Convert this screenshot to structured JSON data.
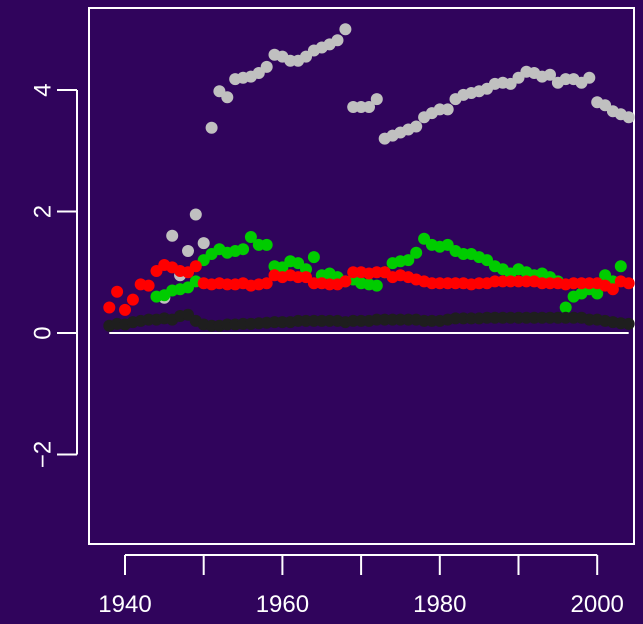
{
  "chart_data": {
    "type": "scatter",
    "title": "",
    "xlabel": "",
    "ylabel": "",
    "xlim": [
      1935,
      2005
    ],
    "ylim": [
      -3.5,
      5.3
    ],
    "x_ticks": [
      1940,
      1950,
      1960,
      1970,
      1980,
      1990,
      2000
    ],
    "x_tick_labels": [
      "1940",
      "1960",
      "1980",
      "2000"
    ],
    "y_ticks": [
      -2,
      0,
      2,
      4
    ],
    "y_tick_labels": [
      "−2",
      "0",
      "2",
      "4"
    ],
    "grid": false,
    "legend": "none",
    "background_color": "#30045c",
    "axis_color": "#ffffff",
    "reference_line": {
      "y": 0,
      "x_range": [
        1938,
        2004
      ],
      "color": "#ffffff"
    },
    "series": [
      {
        "color": "#c0c0c0",
        "x": [
          1945,
          1946,
          1947,
          1948,
          1949,
          1950,
          1951,
          1952,
          1953,
          1954,
          1955,
          1956,
          1957,
          1958,
          1959,
          1960,
          1961,
          1962,
          1963,
          1964,
          1965,
          1966,
          1967,
          1968,
          1969,
          1970,
          1971,
          1972,
          1973,
          1974,
          1975,
          1976,
          1977,
          1978,
          1979,
          1980,
          1981,
          1982,
          1983,
          1984,
          1985,
          1986,
          1987,
          1988,
          1989,
          1990,
          1991,
          1992,
          1993,
          1994,
          1995,
          1996,
          1997,
          1998,
          1999,
          2000,
          2001,
          2002,
          2003,
          2004
        ],
        "y": [
          0.58,
          1.6,
          0.95,
          1.35,
          1.95,
          1.48,
          3.38,
          3.98,
          3.88,
          4.18,
          4.2,
          4.22,
          4.28,
          4.38,
          4.58,
          4.55,
          4.48,
          4.48,
          4.55,
          4.65,
          4.7,
          4.75,
          4.82,
          5.0,
          3.72,
          3.72,
          3.72,
          3.85,
          3.2,
          3.25,
          3.3,
          3.35,
          3.4,
          3.55,
          3.62,
          3.68,
          3.68,
          3.85,
          3.92,
          3.95,
          3.98,
          4.02,
          4.1,
          4.12,
          4.1,
          4.2,
          4.3,
          4.28,
          4.22,
          4.25,
          4.12,
          4.18,
          4.18,
          4.12,
          4.2,
          3.8,
          3.75,
          3.65,
          3.6,
          3.55
        ]
      },
      {
        "color": "#00cc00",
        "x": [
          1944,
          1945,
          1946,
          1947,
          1948,
          1949,
          1950,
          1951,
          1952,
          1953,
          1954,
          1955,
          1956,
          1957,
          1958,
          1959,
          1960,
          1961,
          1962,
          1963,
          1964,
          1965,
          1966,
          1967,
          1968,
          1969,
          1970,
          1971,
          1972,
          1973,
          1974,
          1975,
          1976,
          1977,
          1978,
          1979,
          1980,
          1981,
          1982,
          1983,
          1984,
          1985,
          1986,
          1987,
          1988,
          1989,
          1990,
          1991,
          1992,
          1993,
          1994,
          1995,
          1996,
          1997,
          1998,
          1999,
          2000,
          2001,
          2002,
          2003
        ],
        "y": [
          0.6,
          0.62,
          0.7,
          0.72,
          0.75,
          0.85,
          1.2,
          1.3,
          1.38,
          1.32,
          1.35,
          1.38,
          1.58,
          1.45,
          1.45,
          1.1,
          1.08,
          1.18,
          1.15,
          1.05,
          1.25,
          0.95,
          0.98,
          0.92,
          0.85,
          0.88,
          0.82,
          0.8,
          0.78,
          1.0,
          1.15,
          1.18,
          1.2,
          1.32,
          1.55,
          1.45,
          1.42,
          1.45,
          1.35,
          1.3,
          1.3,
          1.25,
          1.2,
          1.1,
          1.05,
          0.98,
          1.05,
          1.0,
          0.95,
          0.98,
          0.92,
          0.85,
          0.42,
          0.6,
          0.65,
          0.72,
          0.65,
          0.95,
          0.85,
          1.1
        ]
      },
      {
        "color": "#ff0000",
        "x": [
          1938,
          1939,
          1940,
          1941,
          1942,
          1943,
          1944,
          1945,
          1946,
          1947,
          1948,
          1949,
          1950,
          1951,
          1952,
          1953,
          1954,
          1955,
          1956,
          1957,
          1958,
          1959,
          1960,
          1961,
          1962,
          1963,
          1964,
          1965,
          1966,
          1967,
          1968,
          1969,
          1970,
          1971,
          1972,
          1973,
          1974,
          1975,
          1976,
          1977,
          1978,
          1979,
          1980,
          1981,
          1982,
          1983,
          1984,
          1985,
          1986,
          1987,
          1988,
          1989,
          1990,
          1991,
          1992,
          1993,
          1994,
          1995,
          1996,
          1997,
          1998,
          1999,
          2000,
          2001,
          2002,
          2003,
          2004
        ],
        "y": [
          0.42,
          0.68,
          0.38,
          0.55,
          0.8,
          0.78,
          1.02,
          1.12,
          1.08,
          1.02,
          1.0,
          1.1,
          0.82,
          0.8,
          0.82,
          0.8,
          0.8,
          0.82,
          0.78,
          0.8,
          0.82,
          0.95,
          0.92,
          0.95,
          0.92,
          0.92,
          0.82,
          0.82,
          0.8,
          0.8,
          0.85,
          1.0,
          1.0,
          0.98,
          1.0,
          1.0,
          0.92,
          0.95,
          0.92,
          0.88,
          0.85,
          0.82,
          0.82,
          0.82,
          0.82,
          0.82,
          0.8,
          0.82,
          0.82,
          0.85,
          0.85,
          0.85,
          0.85,
          0.85,
          0.85,
          0.82,
          0.82,
          0.82,
          0.8,
          0.82,
          0.82,
          0.82,
          0.82,
          0.78,
          0.72,
          0.85,
          0.82
        ]
      },
      {
        "color": "#1e1e1e",
        "x": [
          1938,
          1939,
          1940,
          1941,
          1942,
          1943,
          1944,
          1945,
          1946,
          1947,
          1948,
          1949,
          1950,
          1951,
          1952,
          1953,
          1954,
          1955,
          1956,
          1957,
          1958,
          1959,
          1960,
          1961,
          1962,
          1963,
          1964,
          1965,
          1966,
          1967,
          1968,
          1969,
          1970,
          1971,
          1972,
          1973,
          1974,
          1975,
          1976,
          1977,
          1978,
          1979,
          1980,
          1981,
          1982,
          1983,
          1984,
          1985,
          1986,
          1987,
          1988,
          1989,
          1990,
          1991,
          1992,
          1993,
          1994,
          1995,
          1996,
          1997,
          1998,
          1999,
          2000,
          2001,
          2002,
          2003,
          2004
        ],
        "y": [
          0.12,
          0.15,
          0.14,
          0.18,
          0.2,
          0.22,
          0.22,
          0.24,
          0.22,
          0.28,
          0.3,
          0.2,
          0.14,
          0.12,
          0.12,
          0.14,
          0.14,
          0.15,
          0.15,
          0.16,
          0.17,
          0.18,
          0.18,
          0.18,
          0.2,
          0.2,
          0.2,
          0.2,
          0.2,
          0.2,
          0.18,
          0.2,
          0.2,
          0.2,
          0.22,
          0.22,
          0.22,
          0.22,
          0.22,
          0.22,
          0.2,
          0.2,
          0.2,
          0.22,
          0.24,
          0.24,
          0.24,
          0.24,
          0.25,
          0.25,
          0.25,
          0.25,
          0.25,
          0.25,
          0.25,
          0.25,
          0.25,
          0.25,
          0.25,
          0.25,
          0.25,
          0.22,
          0.22,
          0.2,
          0.18,
          0.16,
          0.15
        ]
      }
    ]
  }
}
